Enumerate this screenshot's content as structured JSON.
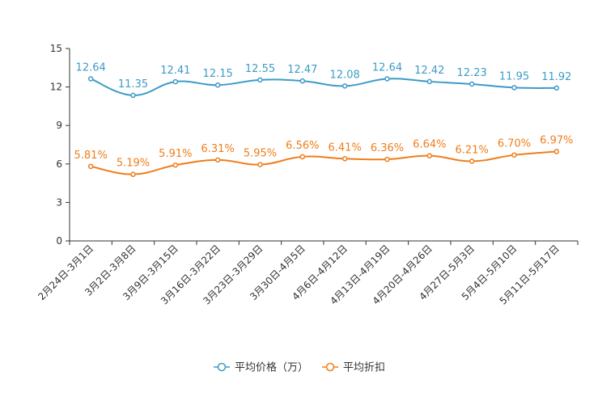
{
  "chart_data": {
    "type": "line",
    "categories": [
      "2月24日-3月1日",
      "3月2日-3月8日",
      "3月9日-3月15日",
      "3月16日-3月22日",
      "3月23日-3月29日",
      "3月30日-4月5日",
      "4月6日-4月12日",
      "4月13日-4月19日",
      "4月20日-4月26日",
      "4月27日-5月3日",
      "5月4日-5月10日",
      "5月11日-5月17日"
    ],
    "series": [
      {
        "name": "平均价格（万）",
        "color": "#3d9bc7",
        "values": [
          12.64,
          11.35,
          12.41,
          12.15,
          12.55,
          12.47,
          12.08,
          12.64,
          12.42,
          12.23,
          11.95,
          11.92
        ],
        "labels": [
          "12.64",
          "11.35",
          "12.41",
          "12.15",
          "12.55",
          "12.47",
          "12.08",
          "12.64",
          "12.42",
          "12.23",
          "11.95",
          "11.92"
        ]
      },
      {
        "name": "平均折扣",
        "color": "#f07d1a",
        "values": [
          5.81,
          5.19,
          5.91,
          6.31,
          5.95,
          6.56,
          6.41,
          6.36,
          6.64,
          6.21,
          6.7,
          6.97
        ],
        "labels": [
          "5.81%",
          "5.19%",
          "5.91%",
          "6.31%",
          "5.95%",
          "6.56%",
          "6.41%",
          "6.36%",
          "6.64%",
          "6.21%",
          "6.70%",
          "6.97%"
        ]
      }
    ],
    "yticks": [
      "0",
      "3",
      "6",
      "9",
      "12",
      "15"
    ],
    "ylim": [
      0,
      15
    ],
    "legend": "bottom-center",
    "title": "",
    "xlabel": "",
    "ylabel": ""
  }
}
